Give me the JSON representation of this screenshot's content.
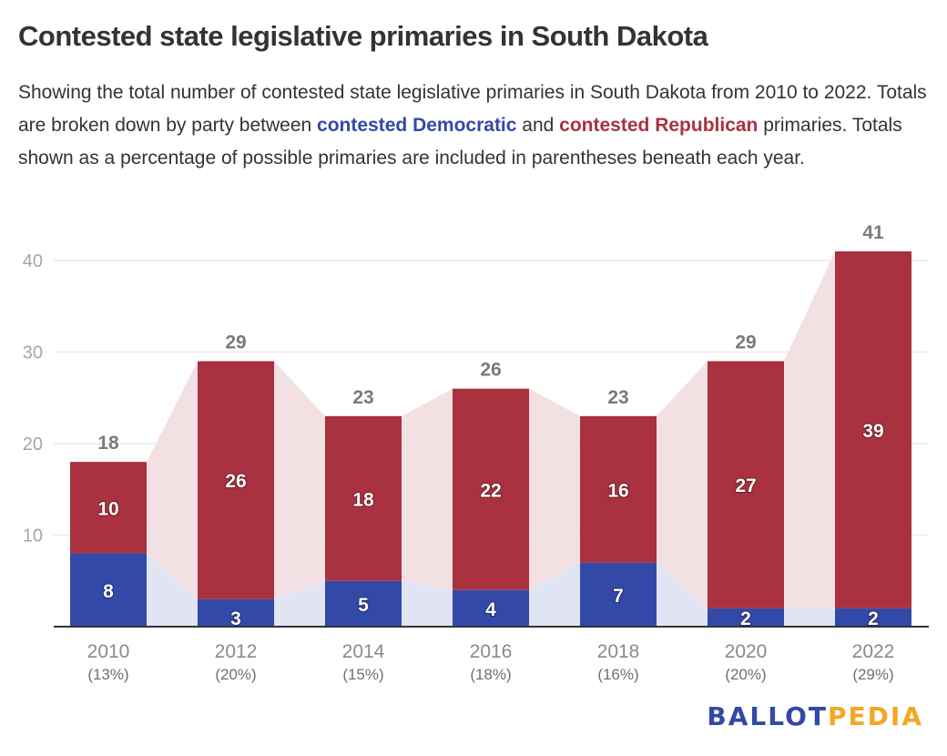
{
  "title": "Contested state legislative primaries in South Dakota",
  "description": {
    "part1": "Showing the total number of contested state legislative primaries in South Dakota from 2010 to 2022. Totals are broken down by party between ",
    "dem_link": "contested Democratic",
    "part2": " and ",
    "rep_link": "contested Republican",
    "part3": " primaries. Totals shown as a percentage of possible primaries are included in parentheses beneath each year."
  },
  "colors": {
    "democratic": "#3349a8",
    "republican": "#a93140",
    "democratic_area": "#e1e4f3",
    "republican_area": "#f3e0e3",
    "gridline": "#e6e6e6",
    "axis": "#333333"
  },
  "logo": {
    "part1": "BALLOT",
    "part2": "PEDIA"
  },
  "chart_data": {
    "type": "bar",
    "stacked": true,
    "title": "Contested state legislative primaries in South Dakota",
    "xlabel": "",
    "ylabel": "",
    "ylim": [
      0,
      40
    ],
    "yticks": [
      10,
      20,
      30,
      40
    ],
    "grid": true,
    "categories": [
      "2010",
      "2012",
      "2014",
      "2016",
      "2018",
      "2020",
      "2022"
    ],
    "category_sublabels": [
      "(13%)",
      "(20%)",
      "(15%)",
      "(18%)",
      "(16%)",
      "(20%)",
      "(29%)"
    ],
    "series": [
      {
        "name": "Contested Democratic",
        "values": [
          8,
          3,
          5,
          4,
          7,
          2,
          2
        ]
      },
      {
        "name": "Contested Republican",
        "values": [
          10,
          26,
          18,
          22,
          16,
          27,
          39
        ]
      }
    ],
    "totals": [
      18,
      29,
      23,
      26,
      23,
      29,
      41
    ]
  }
}
